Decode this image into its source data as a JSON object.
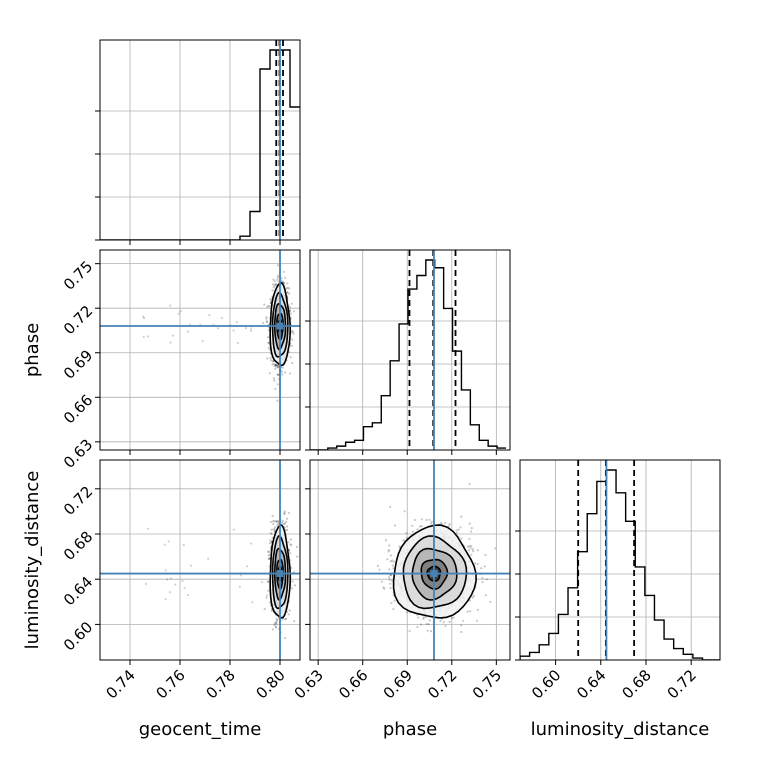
{
  "chart_data": {
    "type": "corner",
    "parameters": [
      "geocent_time",
      "phase",
      "luminosity_distance"
    ],
    "axis_labels": {
      "geocent_time": "geocent_time",
      "phase": "phase",
      "luminosity_distance": "luminosity_distance"
    },
    "ranges": {
      "geocent_time": [
        0.728,
        0.808
      ],
      "phase": [
        0.6245,
        0.7592
      ],
      "luminosity_distance": [
        0.5685,
        0.7455
      ]
    },
    "ticks": {
      "geocent_time": [
        "0.74",
        "0.76",
        "0.78",
        "0.80"
      ],
      "phase": [
        "0.63",
        "0.66",
        "0.69",
        "0.72",
        "0.75"
      ],
      "luminosity_distance": [
        "0.60",
        "0.64",
        "0.68",
        "0.72"
      ]
    },
    "truths": {
      "geocent_time": 0.8,
      "phase": 0.708,
      "luminosity_distance": 0.645
    },
    "quantiles": {
      "geocent_time": [
        0.7985,
        0.7998,
        0.8012
      ],
      "phase": [
        0.6915,
        0.7075,
        0.7225
      ],
      "luminosity_distance": [
        0.62,
        0.6445,
        0.6695
      ]
    },
    "histograms": {
      "geocent_time": {
        "bins": [
          0.728,
          0.732,
          0.736,
          0.74,
          0.744,
          0.748,
          0.752,
          0.756,
          0.76,
          0.764,
          0.768,
          0.772,
          0.776,
          0.78,
          0.784,
          0.788,
          0.792,
          0.796,
          0.8,
          0.804,
          0.808
        ],
        "counts": [
          0,
          0,
          0,
          0,
          0,
          0,
          0,
          0,
          0,
          0,
          0,
          0,
          0,
          0,
          2,
          15,
          90,
          100,
          100,
          70
        ]
      },
      "phase": {
        "bins": [
          0.6245,
          0.6305,
          0.6365,
          0.6425,
          0.6485,
          0.6545,
          0.6605,
          0.6665,
          0.6725,
          0.6785,
          0.6845,
          0.6905,
          0.6965,
          0.7025,
          0.7085,
          0.7145,
          0.7205,
          0.7265,
          0.7325,
          0.7385,
          0.7445,
          0.7505,
          0.7565
        ],
        "counts": [
          0,
          0,
          1,
          2,
          4,
          5,
          12,
          14,
          28,
          46,
          65,
          83,
          90,
          98,
          94,
          73,
          51,
          31,
          13,
          5,
          2,
          1
        ]
      },
      "luminosity_distance": {
        "bins": [
          0.5685,
          0.577,
          0.5855,
          0.594,
          0.6025,
          0.611,
          0.6195,
          0.628,
          0.6365,
          0.645,
          0.6535,
          0.662,
          0.6705,
          0.679,
          0.6875,
          0.696,
          0.7045,
          0.713,
          0.7215,
          0.73,
          0.7385,
          0.7455
        ],
        "counts": [
          2,
          4,
          8,
          14,
          24,
          38,
          57,
          77,
          94,
          100,
          88,
          73,
          49,
          34,
          21,
          11,
          6,
          3,
          1,
          0,
          0
        ]
      }
    },
    "contour_panels": [
      {
        "x": "geocent_time",
        "y": "phase"
      },
      {
        "x": "geocent_time",
        "y": "luminosity_distance"
      },
      {
        "x": "phase",
        "y": "luminosity_distance"
      }
    ],
    "grid": true,
    "colors": {
      "truth": "#4682b4",
      "hist": "#000000",
      "grid": "#b0b0b0"
    }
  }
}
